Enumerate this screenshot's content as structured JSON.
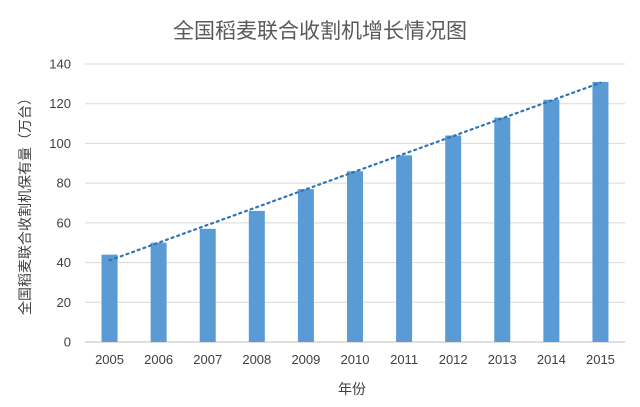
{
  "chart_data": {
    "type": "bar",
    "title": "全国稻麦联合收割机增长情况图",
    "xlabel": "年份",
    "ylabel": "全国稻麦联合收割机保有量（万台）",
    "categories": [
      "2005",
      "2006",
      "2007",
      "2008",
      "2009",
      "2010",
      "2011",
      "2012",
      "2013",
      "2014",
      "2015"
    ],
    "series": [
      {
        "values": [
          44,
          50,
          57,
          66,
          77,
          86,
          94,
          104,
          113,
          122,
          131
        ]
      }
    ],
    "trendline": {
      "type": "linear",
      "style": "dotted"
    },
    "ylim": [
      0,
      140
    ],
    "yticks": [
      "0",
      "20",
      "40",
      "60",
      "80",
      "100",
      "120",
      "140"
    ],
    "grid": true,
    "legend": "none",
    "colors": {
      "bar": "#5b9bd5",
      "trendline": "#2e75b6"
    }
  }
}
